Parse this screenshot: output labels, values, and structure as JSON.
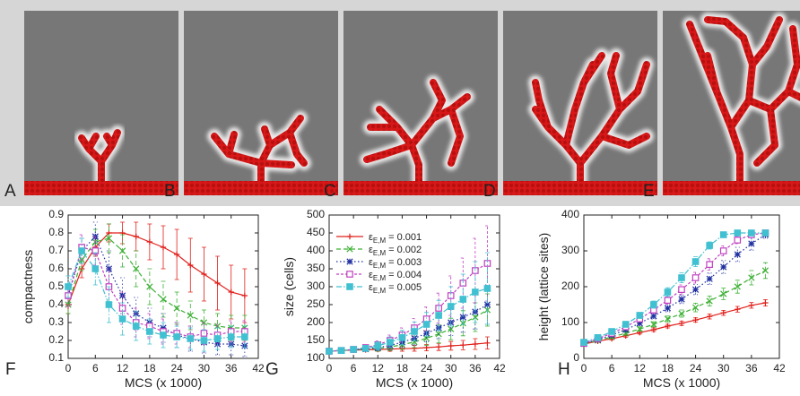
{
  "panels": {
    "labels": [
      "A",
      "B",
      "C",
      "D",
      "E"
    ]
  },
  "chart_data": [
    {
      "type": "line",
      "panel_label": "F",
      "xlabel": "MCS (x 1000)",
      "ylabel": "compactness",
      "x": [
        0,
        3,
        6,
        9,
        12,
        15,
        18,
        21,
        24,
        27,
        30,
        33,
        36,
        39
      ],
      "xlim": [
        0,
        42
      ],
      "xticks": [
        0,
        6,
        12,
        18,
        24,
        30,
        36,
        42
      ],
      "ylim": [
        0.1,
        0.9
      ],
      "yticks": [
        0.1,
        0.2,
        0.3,
        0.4,
        0.5,
        0.6,
        0.7,
        0.8,
        0.9
      ],
      "legend": false,
      "series": [
        {
          "name": "= 0.001",
          "color": "#e0201b",
          "dash": "none",
          "marker": "plus",
          "values": [
            0.4,
            0.6,
            0.72,
            0.8,
            0.8,
            0.78,
            0.75,
            0.72,
            0.68,
            0.62,
            0.57,
            0.52,
            0.47,
            0.45
          ],
          "errors": [
            0.05,
            0.05,
            0.05,
            0.05,
            0.06,
            0.08,
            0.1,
            0.12,
            0.14,
            0.15,
            0.15,
            0.15,
            0.15,
            0.15
          ]
        },
        {
          "name": "= 0.002",
          "color": "#3cb034",
          "dash": "5,3",
          "marker": "cross",
          "values": [
            0.4,
            0.65,
            0.75,
            0.77,
            0.7,
            0.6,
            0.5,
            0.43,
            0.38,
            0.34,
            0.3,
            0.28,
            0.27,
            0.27
          ],
          "errors": [
            0.05,
            0.06,
            0.07,
            0.08,
            0.09,
            0.1,
            0.1,
            0.1,
            0.09,
            0.08,
            0.07,
            0.07,
            0.07,
            0.07
          ]
        },
        {
          "name": "= 0.003",
          "color": "#1f2fa0",
          "dash": "1.5,2.5",
          "marker": "star",
          "values": [
            0.45,
            0.7,
            0.78,
            0.6,
            0.45,
            0.35,
            0.3,
            0.27,
            0.23,
            0.21,
            0.19,
            0.18,
            0.18,
            0.17
          ],
          "errors": [
            0.06,
            0.07,
            0.08,
            0.1,
            0.1,
            0.09,
            0.08,
            0.08,
            0.07,
            0.07,
            0.06,
            0.06,
            0.06,
            0.06
          ]
        },
        {
          "name": "= 0.004",
          "color": "#c040c0",
          "dash": "3,2",
          "marker": "square",
          "values": [
            0.45,
            0.72,
            0.7,
            0.5,
            0.38,
            0.3,
            0.28,
            0.25,
            0.24,
            0.22,
            0.24,
            0.23,
            0.25,
            0.25
          ],
          "errors": [
            0.06,
            0.07,
            0.08,
            0.1,
            0.09,
            0.08,
            0.07,
            0.07,
            0.06,
            0.06,
            0.06,
            0.06,
            0.06,
            0.06
          ]
        },
        {
          "name": "= 0.005",
          "color": "#40c0d0",
          "dash": "6,2,1.5,2",
          "marker": "fsquare",
          "values": [
            0.5,
            0.7,
            0.6,
            0.4,
            0.32,
            0.28,
            0.25,
            0.23,
            0.22,
            0.21,
            0.2,
            0.21,
            0.22,
            0.22
          ],
          "errors": [
            0.06,
            0.07,
            0.09,
            0.1,
            0.09,
            0.08,
            0.07,
            0.07,
            0.06,
            0.06,
            0.06,
            0.06,
            0.06,
            0.06
          ]
        }
      ]
    },
    {
      "type": "line",
      "panel_label": "G",
      "xlabel": "MCS (x 1000)",
      "ylabel": "size (cells)",
      "x": [
        0,
        3,
        6,
        9,
        12,
        15,
        18,
        21,
        24,
        27,
        30,
        33,
        36,
        39
      ],
      "xlim": [
        0,
        42
      ],
      "xticks": [
        0,
        6,
        12,
        18,
        24,
        30,
        36,
        42
      ],
      "ylim": [
        100,
        500
      ],
      "yticks": [
        100,
        150,
        200,
        250,
        300,
        350,
        400,
        450,
        500
      ],
      "legend": true,
      "legend_symbol": "ε",
      "legend_subscript": "E,M",
      "series": [
        {
          "name": "= 0.001",
          "color": "#e0201b",
          "dash": "none",
          "marker": "plus",
          "values": [
            120,
            122,
            123,
            124,
            125,
            126,
            127,
            128,
            130,
            132,
            135,
            137,
            140,
            143
          ],
          "errors": [
            3,
            3,
            4,
            4,
            5,
            6,
            7,
            8,
            9,
            10,
            12,
            13,
            15,
            17
          ]
        },
        {
          "name": "= 0.002",
          "color": "#3cb034",
          "dash": "5,3",
          "marker": "cross",
          "values": [
            120,
            122,
            124,
            126,
            128,
            132,
            138,
            146,
            156,
            168,
            182,
            198,
            215,
            235
          ],
          "errors": [
            3,
            4,
            5,
            6,
            8,
            10,
            13,
            16,
            20,
            25,
            30,
            35,
            40,
            45
          ]
        },
        {
          "name": "= 0.003",
          "color": "#1f2fa0",
          "dash": "1.5,2.5",
          "marker": "star",
          "values": [
            120,
            122,
            124,
            126,
            130,
            136,
            145,
            156,
            170,
            185,
            200,
            215,
            230,
            250
          ],
          "errors": [
            3,
            4,
            5,
            7,
            9,
            12,
            15,
            19,
            24,
            30,
            36,
            42,
            48,
            55
          ]
        },
        {
          "name": "= 0.004",
          "color": "#c040c0",
          "dash": "3,2",
          "marker": "square",
          "values": [
            120,
            122,
            125,
            130,
            138,
            150,
            165,
            185,
            210,
            240,
            275,
            310,
            345,
            365
          ],
          "errors": [
            3,
            4,
            6,
            8,
            11,
            15,
            20,
            26,
            33,
            42,
            55,
            70,
            90,
            105
          ]
        },
        {
          "name": "= 0.005",
          "color": "#40c0d0",
          "dash": "6,2,1.5,2",
          "marker": "fsquare",
          "values": [
            120,
            122,
            125,
            128,
            135,
            145,
            158,
            175,
            195,
            220,
            245,
            265,
            285,
            295
          ],
          "errors": [
            3,
            4,
            6,
            8,
            11,
            15,
            20,
            26,
            33,
            42,
            55,
            70,
            85,
            100
          ]
        }
      ]
    },
    {
      "type": "line",
      "panel_label": "H",
      "xlabel": "MCS (x 1000)",
      "ylabel": "height (lattice sites)",
      "x": [
        0,
        3,
        6,
        9,
        12,
        15,
        18,
        21,
        24,
        27,
        30,
        33,
        36,
        39
      ],
      "xlim": [
        0,
        42
      ],
      "xticks": [
        0,
        6,
        12,
        18,
        24,
        30,
        36,
        42
      ],
      "ylim": [
        0,
        400
      ],
      "yticks": [
        0,
        100,
        200,
        300,
        400
      ],
      "legend": false,
      "series": [
        {
          "name": "= 0.001",
          "color": "#e0201b",
          "dash": "none",
          "marker": "plus",
          "values": [
            40,
            48,
            55,
            63,
            72,
            80,
            90,
            98,
            107,
            117,
            127,
            137,
            148,
            155
          ],
          "errors": [
            2,
            3,
            3,
            4,
            4,
            5,
            5,
            6,
            6,
            7,
            7,
            8,
            8,
            9
          ]
        },
        {
          "name": "= 0.002",
          "color": "#3cb034",
          "dash": "5,3",
          "marker": "cross",
          "values": [
            40,
            50,
            60,
            70,
            82,
            95,
            110,
            125,
            142,
            160,
            180,
            200,
            225,
            245
          ],
          "errors": [
            2,
            3,
            4,
            5,
            6,
            7,
            8,
            10,
            12,
            14,
            16,
            18,
            20,
            22
          ]
        },
        {
          "name": "= 0.003",
          "color": "#1f2fa0",
          "dash": "1.5,2.5",
          "marker": "star",
          "values": [
            42,
            52,
            65,
            80,
            98,
            118,
            140,
            165,
            192,
            222,
            255,
            290,
            320,
            345
          ],
          "errors": [
            2,
            3,
            4,
            5,
            6,
            8,
            10,
            12,
            14,
            16,
            18,
            20,
            18,
            10
          ]
        },
        {
          "name": "= 0.004",
          "color": "#c040c0",
          "dash": "3,2",
          "marker": "square",
          "values": [
            42,
            55,
            70,
            88,
            110,
            135,
            162,
            192,
            225,
            262,
            300,
            330,
            345,
            350
          ],
          "errors": [
            2,
            3,
            4,
            5,
            7,
            9,
            11,
            13,
            15,
            16,
            14,
            10,
            6,
            4
          ]
        },
        {
          "name": "= 0.005",
          "color": "#40c0d0",
          "dash": "6,2,1.5,2",
          "marker": "fsquare",
          "values": [
            45,
            58,
            75,
            95,
            120,
            150,
            185,
            225,
            270,
            315,
            345,
            350,
            350,
            350
          ],
          "errors": [
            2,
            3,
            4,
            6,
            8,
            10,
            12,
            14,
            14,
            10,
            6,
            4,
            3,
            3
          ]
        }
      ]
    }
  ]
}
